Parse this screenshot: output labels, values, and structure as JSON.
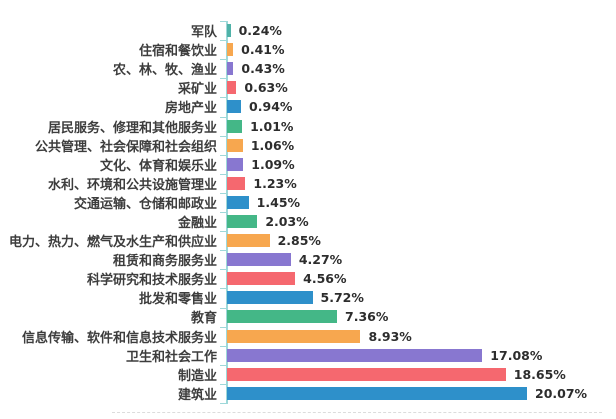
{
  "chart_data": {
    "type": "bar",
    "orientation": "horizontal",
    "title": "",
    "xlabel": "",
    "ylabel": "",
    "grid": false,
    "legend": false,
    "value_suffix": "%",
    "xlim": [
      0,
      21
    ],
    "categories": [
      "军队",
      "住宿和餐饮业",
      "农、林、牧、渔业",
      "采矿业",
      "房地产业",
      "居民服务、修理和其他服务业",
      "公共管理、社会保障和社会组织",
      "文化、体育和娱乐业",
      "水利、环境和公共设施管理业",
      "交通运输、仓储和邮政业",
      "金融业",
      "电力、热力、燃气及水生产和供应业",
      "租赁和商务服务业",
      "科学研究和技术服务业",
      "批发和零售业",
      "教育",
      "信息传输、软件和信息技术服务业",
      "卫生和社会工作",
      "制造业",
      "建筑业"
    ],
    "values": [
      0.24,
      0.41,
      0.43,
      0.63,
      0.94,
      1.01,
      1.06,
      1.09,
      1.23,
      1.45,
      2.03,
      2.85,
      4.27,
      4.56,
      5.72,
      7.36,
      8.93,
      17.08,
      18.65,
      20.07
    ],
    "value_labels": [
      "0.24%",
      "0.41%",
      "0.43%",
      "0.63%",
      "0.94%",
      "1.01%",
      "1.06%",
      "1.09%",
      "1.23%",
      "1.45%",
      "2.03%",
      "2.85%",
      "4.27%",
      "4.56%",
      "5.72%",
      "7.36%",
      "8.93%",
      "17.08%",
      "18.65%",
      "20.07%"
    ],
    "bar_colors": [
      "#4FB2A8",
      "#F7A74F",
      "#8877D0",
      "#F5686F",
      "#2E90CA",
      "#44B787",
      "#F7A74F",
      "#8877D0",
      "#F5686F",
      "#2E90CA",
      "#44B787",
      "#F7A74F",
      "#8877D0",
      "#F5686F",
      "#2E90CA",
      "#44B787",
      "#F7A74F",
      "#8877D0",
      "#F5686F",
      "#2E90CA"
    ],
    "palette": {
      "green": "#44B787",
      "orange": "#F7A74F",
      "purple": "#8877D0",
      "red": "#F5686F",
      "blue": "#2E90CA",
      "teal": "#4FB2A8"
    },
    "axis_color": "#9ED8D9",
    "baseline_color": "#DCDCDC",
    "category_text_color": "#3D3D3D",
    "value_text_color": "#2D2D2D",
    "background_color": "#FFFFFF"
  }
}
